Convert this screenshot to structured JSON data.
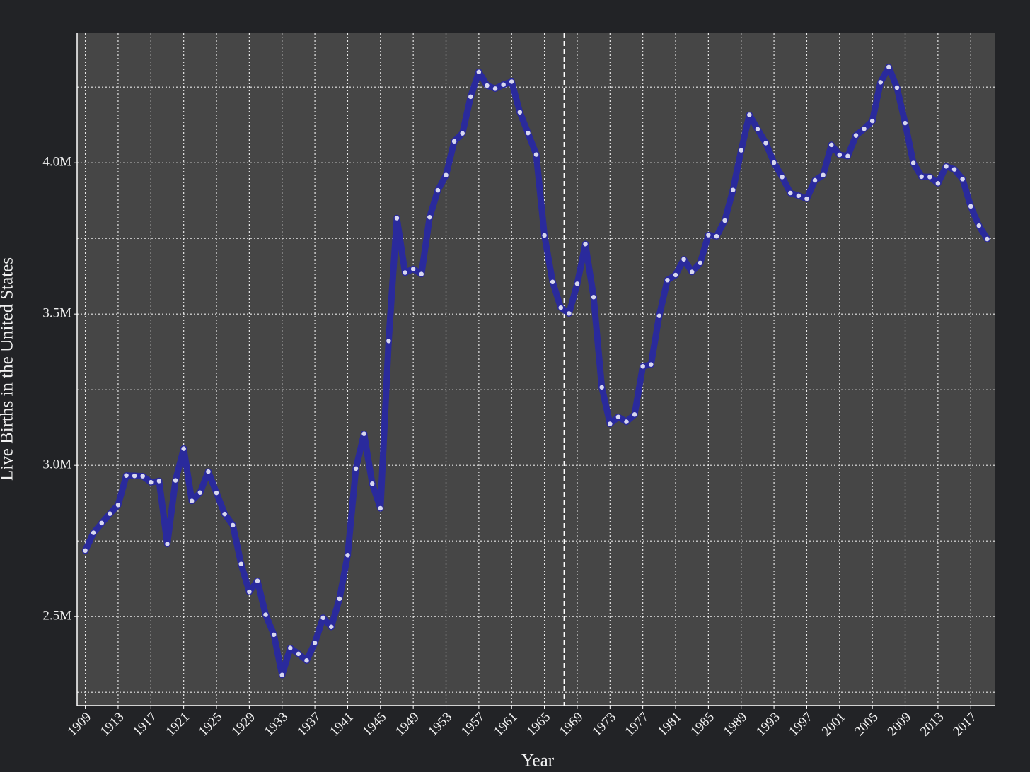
{
  "chart_data": {
    "type": "line",
    "x_label": "Year",
    "y_label": "Live Births in the United States",
    "x": [
      1909,
      1910,
      1911,
      1912,
      1913,
      1914,
      1915,
      1916,
      1917,
      1918,
      1919,
      1920,
      1921,
      1922,
      1923,
      1924,
      1925,
      1926,
      1927,
      1928,
      1929,
      1930,
      1931,
      1932,
      1933,
      1934,
      1935,
      1936,
      1937,
      1938,
      1939,
      1940,
      1941,
      1942,
      1943,
      1944,
      1945,
      1946,
      1947,
      1948,
      1949,
      1950,
      1951,
      1952,
      1953,
      1954,
      1955,
      1956,
      1957,
      1958,
      1959,
      1960,
      1961,
      1962,
      1963,
      1964,
      1965,
      1966,
      1967,
      1968,
      1969,
      1970,
      1971,
      1972,
      1973,
      1974,
      1975,
      1976,
      1977,
      1978,
      1979,
      1980,
      1981,
      1982,
      1983,
      1984,
      1985,
      1986,
      1987,
      1988,
      1989,
      1990,
      1991,
      1992,
      1993,
      1994,
      1995,
      1996,
      1997,
      1998,
      1999,
      2000,
      2001,
      2002,
      2003,
      2004,
      2005,
      2006,
      2007,
      2008,
      2009,
      2010,
      2011,
      2012,
      2013,
      2014,
      2015,
      2016,
      2017,
      2018,
      2019
    ],
    "series": [
      {
        "color": "#2a2a9c",
        "marker_color": "#d8d8f0",
        "values": [
          2718000,
          2777000,
          2809000,
          2840000,
          2869000,
          2966000,
          2965000,
          2964000,
          2944000,
          2948000,
          2740000,
          2950000,
          3055000,
          2882000,
          2910000,
          2979000,
          2909000,
          2839000,
          2802000,
          2674000,
          2582000,
          2618000,
          2506000,
          2440000,
          2307000,
          2396000,
          2377000,
          2355000,
          2413000,
          2496000,
          2466000,
          2559000,
          2703000,
          2989000,
          3104000,
          2939000,
          2858000,
          3411000,
          3817000,
          3637000,
          3649000,
          3632000,
          3820000,
          3909000,
          3959000,
          4071000,
          4097000,
          4218000,
          4300000,
          4255000,
          4245000,
          4258000,
          4268000,
          4167000,
          4098000,
          4027000,
          3760000,
          3606000,
          3521000,
          3502000,
          3600000,
          3731000,
          3556000,
          3258000,
          3137000,
          3160000,
          3144000,
          3168000,
          3327000,
          3333000,
          3494000,
          3612000,
          3629000,
          3681000,
          3639000,
          3669000,
          3761000,
          3757000,
          3809000,
          3910000,
          4041000,
          4158000,
          4111000,
          4065000,
          4000000,
          3953000,
          3900000,
          3891000,
          3881000,
          3942000,
          3959000,
          4059000,
          4026000,
          4022000,
          4090000,
          4112000,
          4138000,
          4266000,
          4316000,
          4248000,
          4131000,
          3999000,
          3954000,
          3953000,
          3932000,
          3988000,
          3978000,
          3946000,
          3856000,
          3792000,
          3748000
        ]
      }
    ],
    "xlim": [
      1908,
      2020
    ],
    "ylim": [
      2206000,
      4428000
    ],
    "xticks": [
      1909,
      1913,
      1917,
      1921,
      1925,
      1929,
      1933,
      1937,
      1941,
      1945,
      1949,
      1953,
      1957,
      1961,
      1965,
      1969,
      1973,
      1977,
      1981,
      1985,
      1989,
      1993,
      1997,
      2001,
      2005,
      2009,
      2013,
      2017
    ],
    "yticks": [
      {
        "value": 2500000,
        "label": "2.5M"
      },
      {
        "value": 3000000,
        "label": "3.0M"
      },
      {
        "value": 3500000,
        "label": "3.5M"
      },
      {
        "value": 4000000,
        "label": "4.0M"
      }
    ],
    "minor_yticks": [
      2250000,
      2750000,
      3250000,
      3750000,
      4250000
    ],
    "vline": 1967.4,
    "grid": true
  }
}
